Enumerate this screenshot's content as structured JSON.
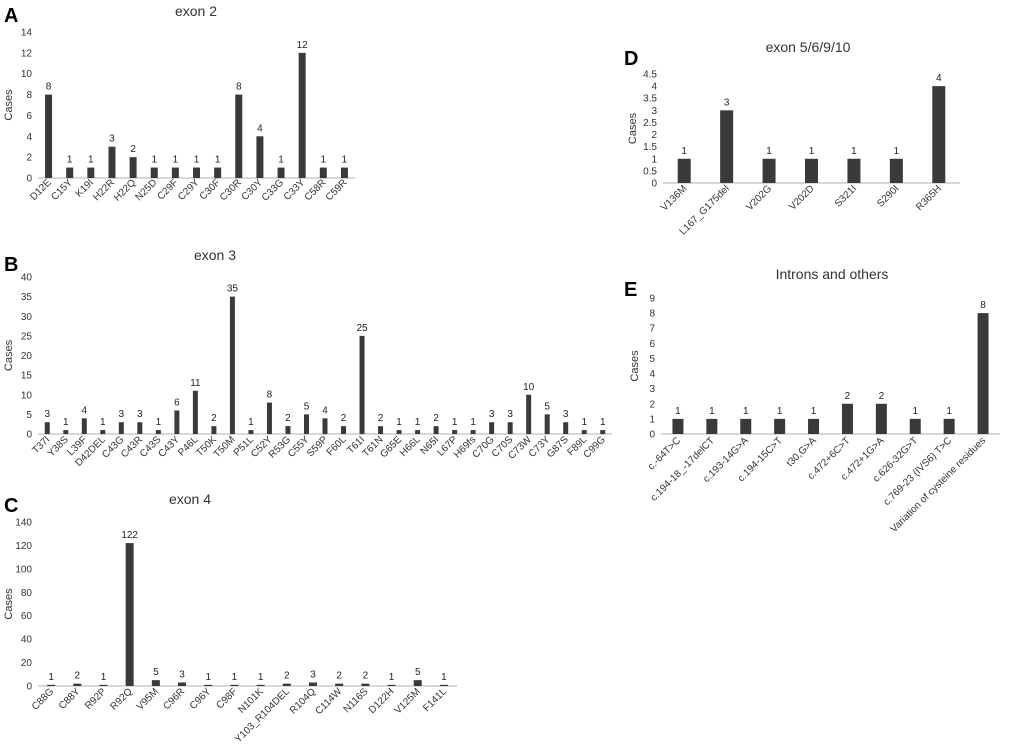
{
  "colors": {
    "bar": "#3a3a3a",
    "axis": "#b0b0b0",
    "text": "#333333"
  },
  "chart_data": [
    {
      "panel": "A",
      "type": "bar",
      "title": "exon 2",
      "ylabel": "Cases",
      "ylim": [
        0,
        14
      ],
      "yticks": [
        0,
        2,
        4,
        6,
        8,
        10,
        12,
        14
      ],
      "categories": [
        "D12E",
        "C15Y",
        "K19I",
        "H22R",
        "H22Q",
        "N25D",
        "C29F",
        "C29Y",
        "C30F",
        "C30R",
        "C30Y",
        "C33G",
        "C33Y",
        "C58R",
        "C59R"
      ],
      "values": [
        8,
        1,
        1,
        3,
        2,
        1,
        1,
        1,
        1,
        8,
        4,
        1,
        12,
        1,
        1
      ]
    },
    {
      "panel": "B",
      "type": "bar",
      "title": "exon 3",
      "ylabel": "Cases",
      "ylim": [
        0,
        40
      ],
      "yticks": [
        0,
        5,
        10,
        15,
        20,
        25,
        30,
        35,
        40
      ],
      "categories": [
        "T37I",
        "Y38S",
        "L39F",
        "D42DEL",
        "C43G",
        "C43R",
        "C43S",
        "C43Y",
        "P46L",
        "T50K",
        "T50M",
        "P51L",
        "C52Y",
        "R53G",
        "C55Y",
        "S59P",
        "F60L",
        "T61I",
        "T61N",
        "G65E",
        "H66L",
        "N65I",
        "L67P",
        "H69fs",
        "C70G",
        "C70S",
        "C73W",
        "C73Y",
        "G87S",
        "F89L",
        "C99G"
      ],
      "values": [
        3,
        1,
        4,
        1,
        3,
        3,
        1,
        6,
        11,
        2,
        35,
        1,
        8,
        2,
        5,
        4,
        2,
        25,
        2,
        1,
        1,
        2,
        1,
        1,
        3,
        3,
        10,
        5,
        3,
        1,
        1
      ]
    },
    {
      "panel": "C",
      "type": "bar",
      "title": "exon 4",
      "ylabel": "Cases",
      "ylim": [
        0,
        140
      ],
      "yticks": [
        0,
        20,
        40,
        60,
        80,
        100,
        120,
        140
      ],
      "categories": [
        "C88G",
        "C88Y",
        "R92P",
        "R92Q",
        "V95M",
        "C96R",
        "C96Y",
        "C98F",
        "N101K",
        "Y103_R104DEL",
        "R104Q",
        "C114W",
        "N116S",
        "D122H",
        "V125M",
        "F141L"
      ],
      "values": [
        1,
        2,
        1,
        122,
        5,
        3,
        1,
        1,
        1,
        2,
        3,
        2,
        2,
        1,
        5,
        1
      ]
    },
    {
      "panel": "D",
      "type": "bar",
      "title": "exon 5/6/9/10",
      "ylabel": "Cases",
      "ylim": [
        0,
        4.5
      ],
      "yticks": [
        0,
        0.5,
        1,
        1.5,
        2,
        2.5,
        3,
        3.5,
        4,
        4.5
      ],
      "categories": [
        "V136M",
        "L167_G175del",
        "V202G",
        "V202D",
        "S321I",
        "S290I",
        "R365H"
      ],
      "values": [
        1,
        3,
        1,
        1,
        1,
        1,
        4
      ]
    },
    {
      "panel": "E",
      "type": "bar",
      "title": "Introns and others",
      "ylabel": "Cases",
      "ylim": [
        0,
        9
      ],
      "yticks": [
        0,
        1,
        2,
        3,
        4,
        5,
        6,
        7,
        8,
        9
      ],
      "categories": [
        "c.-64T>C",
        "c.194-18_-17delCT",
        "c.193-14G>A",
        "c.194-15C>T",
        "t30,G>A",
        "c.472+6C>T",
        "c.472+1G>A",
        "c.626-32G>T",
        "c.769-23  (IVS6)  T>C",
        "Variation of cysteine residues"
      ],
      "values": [
        1,
        1,
        1,
        1,
        1,
        2,
        2,
        1,
        1,
        8
      ]
    }
  ]
}
